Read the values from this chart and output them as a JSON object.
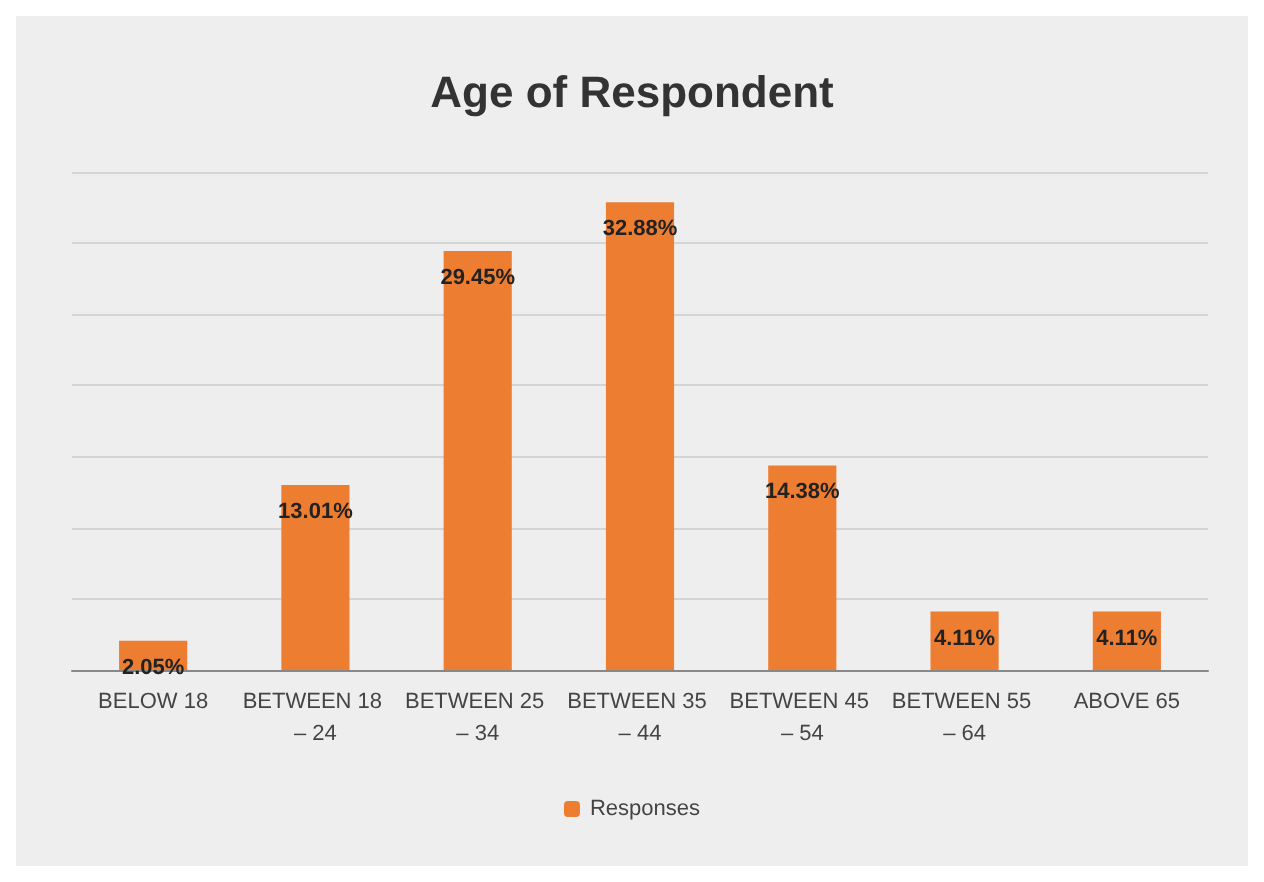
{
  "chart_data": {
    "type": "bar",
    "title": "Age of Respondent",
    "categories": [
      "BELOW 18",
      "BETWEEN 18 – 24",
      "BETWEEN 25 – 34",
      "BETWEEN 35 – 44",
      "BETWEEN 45 – 54",
      "BETWEEN 55 – 64",
      "ABOVE 65"
    ],
    "series": [
      {
        "name": "Responses",
        "color": "#ed7d31",
        "values": [
          2.05,
          13.01,
          29.45,
          32.88,
          14.38,
          4.11,
          4.11
        ],
        "value_labels": [
          "2.05%",
          "13.01%",
          "29.45%",
          "32.88%",
          "14.38%",
          "4.11%",
          "4.11%"
        ]
      }
    ],
    "ylim": [
      0,
      35
    ],
    "yticks": [
      {
        "value": 0,
        "label": null
      },
      {
        "value": 5,
        "label": null
      },
      {
        "value": 10,
        "label": null
      },
      {
        "value": 15,
        "label": null
      },
      {
        "value": 20,
        "label": null
      },
      {
        "value": 25,
        "label": null
      },
      {
        "value": 30,
        "label": null
      },
      {
        "value": 35,
        "label": null
      }
    ],
    "tick_labels": "x",
    "grid": "y",
    "legend": "bottom"
  }
}
